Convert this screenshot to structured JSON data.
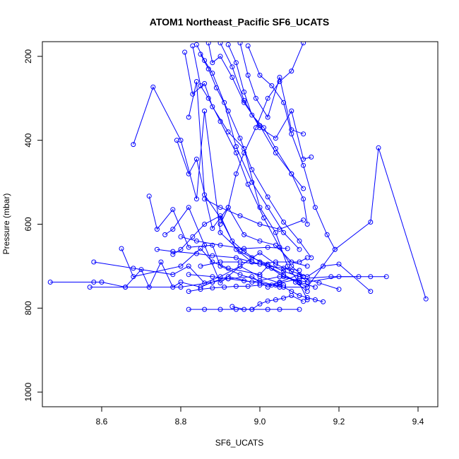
{
  "chart_data": {
    "type": "line",
    "title": "ATOM1 Northeast_Pacific SF6_UCATS",
    "xlabel": "SF6_UCATS",
    "ylabel": "Pressure (mbar)",
    "xlim": [
      8.45,
      9.45
    ],
    "ylim": [
      1035,
      165
    ],
    "x_ticks": [
      8.6,
      8.8,
      9.0,
      9.2,
      9.4
    ],
    "x_tick_labels": [
      "8.6",
      "8.8",
      "9.0",
      "9.2",
      "9.4"
    ],
    "y_ticks": [
      200,
      400,
      600,
      800,
      1000
    ],
    "y_tick_labels": [
      "200",
      "400",
      "600",
      "800",
      "1000"
    ],
    "grid": false,
    "legend": "none",
    "marker": "open-circle",
    "color": "#0000ff",
    "series": [
      {
        "x": [
          8.47,
          8.58,
          8.6,
          8.66,
          8.7,
          8.72,
          8.75,
          8.78,
          8.8,
          8.85,
          8.88,
          8.92,
          8.98,
          9.02,
          9.05,
          9.1,
          9.12
        ],
        "y": [
          738,
          738,
          738,
          750,
          708,
          750,
          690,
          750,
          738,
          750,
          738,
          730,
          725,
          750,
          738,
          720,
          738
        ]
      },
      {
        "x": [
          8.57,
          8.66,
          8.8,
          8.88,
          8.92,
          8.98,
          9.05,
          9.12,
          9.2,
          9.28,
          9.32
        ],
        "y": [
          750,
          750,
          750,
          738,
          725,
          738,
          725,
          738,
          725,
          725,
          725
        ]
      },
      {
        "x": [
          8.58,
          8.68,
          8.78,
          8.82,
          8.86,
          8.9,
          8.95,
          9.0,
          9.05,
          9.1,
          9.18,
          9.25
        ],
        "y": [
          690,
          705,
          720,
          700,
          740,
          725,
          700,
          725,
          740,
          730,
          725,
          725
        ]
      },
      {
        "x": [
          8.65,
          8.68,
          8.8,
          8.85,
          8.88,
          8.92,
          9.0,
          9.02,
          9.1,
          9.12
        ],
        "y": [
          658,
          725,
          700,
          658,
          690,
          705,
          720,
          700,
          740,
          750
        ]
      },
      {
        "x": [
          8.72,
          8.74,
          8.78,
          8.82,
          8.88,
          8.9,
          8.95,
          9.0,
          9.05,
          9.12,
          9.19,
          9.28,
          9.3,
          9.42
        ],
        "y": [
          533,
          612,
          565,
          655,
          650,
          700,
          720,
          735,
          750,
          750,
          660,
          595,
          418,
          778
        ]
      },
      {
        "x": [
          8.68,
          8.73,
          8.8,
          8.84,
          8.86,
          8.9,
          8.95,
          8.98,
          9.02,
          9.06,
          9.1,
          9.15,
          9.2
        ],
        "y": [
          410,
          273,
          400,
          540,
          330,
          620,
          665,
          680,
          695,
          712,
          725,
          740,
          755
        ]
      },
      {
        "x": [
          8.76,
          8.78,
          8.82,
          8.86,
          8.9,
          8.95,
          9.0,
          9.04,
          9.08,
          9.12,
          9.16,
          9.2,
          9.28
        ],
        "y": [
          625,
          612,
          560,
          650,
          740,
          700,
          668,
          695,
          712,
          725,
          700,
          695,
          760
        ]
      },
      {
        "x": [
          8.78,
          8.8,
          8.83,
          8.86,
          8.9,
          8.94,
          8.98,
          9.02,
          9.06,
          9.1,
          9.14
        ],
        "y": [
          672,
          660,
          630,
          600,
          580,
          660,
          690,
          700,
          725,
          738,
          750
        ]
      },
      {
        "x": [
          8.79,
          8.82,
          8.84,
          8.88,
          8.92,
          8.96,
          9.0,
          9.04,
          9.08,
          9.12
        ],
        "y": [
          400,
          480,
          445,
          610,
          560,
          625,
          640,
          650,
          690,
          700
        ]
      },
      {
        "x": [
          8.81,
          8.83,
          8.86,
          8.88,
          8.92,
          8.96,
          9.0,
          9.04,
          9.07,
          9.1,
          9.12
        ],
        "y": [
          190,
          290,
          265,
          320,
          380,
          420,
          560,
          620,
          700,
          740,
          780
        ]
      },
      {
        "x": [
          8.82,
          8.84,
          8.86,
          8.9,
          8.93,
          8.96,
          9.0,
          9.03,
          9.06,
          9.09,
          9.12
        ],
        "y": [
          345,
          260,
          530,
          585,
          640,
          665,
          690,
          705,
          720,
          738,
          760
        ]
      },
      {
        "x": [
          8.83,
          8.85,
          8.87,
          8.9,
          8.94,
          8.97,
          9.01,
          9.05,
          9.08,
          9.11
        ],
        "y": [
          175,
          270,
          300,
          355,
          430,
          505,
          585,
          655,
          700,
          725
        ]
      },
      {
        "x": [
          8.84,
          8.86,
          8.88,
          8.91,
          8.94,
          8.98,
          9.02,
          9.06,
          9.1
        ],
        "y": [
          172,
          210,
          240,
          310,
          415,
          500,
          560,
          620,
          660
        ]
      },
      {
        "x": [
          8.85,
          8.87,
          8.89,
          8.92,
          8.95,
          8.98,
          9.02,
          9.06,
          9.1,
          9.13
        ],
        "y": [
          195,
          230,
          275,
          330,
          395,
          470,
          535,
          595,
          640,
          680
        ]
      },
      {
        "x": [
          8.87,
          8.88,
          8.9,
          8.93,
          8.96,
          9.0,
          9.04,
          9.08,
          9.11,
          9.12
        ],
        "y": [
          168,
          215,
          200,
          250,
          310,
          365,
          430,
          480,
          540,
          600
        ]
      },
      {
        "x": [
          8.9,
          8.93,
          8.96,
          9.0,
          9.04,
          9.08,
          9.11,
          9.13
        ],
        "y": [
          168,
          225,
          305,
          370,
          395,
          330,
          445,
          440
        ]
      },
      {
        "x": [
          8.92,
          8.94,
          8.96,
          8.98,
          9.01,
          9.04,
          9.08,
          9.11
        ],
        "y": [
          172,
          215,
          285,
          340,
          370,
          420,
          480,
          515
        ]
      },
      {
        "x": [
          8.95,
          8.97,
          8.99,
          9.02,
          9.05,
          9.08,
          9.11
        ],
        "y": [
          168,
          245,
          300,
          345,
          250,
          375,
          385
        ]
      },
      {
        "x": [
          9.11,
          9.08,
          9.05,
          9.02,
          8.99,
          8.96,
          8.94,
          8.92,
          8.9
        ],
        "y": [
          168,
          235,
          260,
          300,
          370,
          430,
          480,
          560,
          600
        ]
      },
      {
        "x": [
          8.97,
          9.0,
          9.03,
          9.06,
          9.08,
          9.11,
          9.14,
          9.17,
          9.19
        ],
        "y": [
          175,
          245,
          270,
          310,
          385,
          460,
          560,
          625,
          660
        ]
      },
      {
        "x": [
          8.86,
          8.9,
          8.95,
          9.0,
          9.05,
          9.11
        ],
        "y": [
          540,
          560,
          580,
          600,
          612,
          590
        ]
      },
      {
        "x": [
          8.8,
          8.84,
          8.9,
          8.96,
          9.02,
          9.07
        ],
        "y": [
          630,
          640,
          650,
          658,
          655,
          658
        ]
      },
      {
        "x": [
          8.85,
          8.9,
          8.95,
          9.0,
          9.04,
          9.1,
          9.12
        ],
        "y": [
          700,
          690,
          690,
          695,
          690,
          690,
          680
        ]
      },
      {
        "x": [
          8.82,
          8.88,
          8.92,
          8.96,
          9.0,
          9.04,
          9.06,
          9.08,
          9.1,
          9.12,
          9.14,
          9.16
        ],
        "y": [
          720,
          725,
          730,
          735,
          740,
          745,
          750,
          760,
          770,
          775,
          780,
          785
        ]
      },
      {
        "x": [
          8.82,
          8.86,
          8.9,
          8.94,
          8.98,
          9.02,
          9.05,
          9.1
        ],
        "y": [
          803,
          803,
          803,
          803,
          803,
          803,
          803,
          803
        ]
      },
      {
        "x": [
          8.93,
          8.96,
          8.98,
          9.0,
          9.02,
          9.04,
          9.06,
          9.08,
          9.11
        ],
        "y": [
          796,
          803,
          803,
          790,
          783,
          780,
          776,
          770,
          784
        ]
      },
      {
        "x": [
          8.82,
          8.85,
          8.88,
          8.91,
          8.94,
          8.97,
          9.0,
          9.03,
          9.06
        ],
        "y": [
          760,
          755,
          752,
          750,
          748,
          748,
          745,
          745,
          745
        ]
      },
      {
        "x": [
          8.74,
          8.78,
          8.84,
          8.88,
          8.94,
          8.98,
          9.02,
          9.06,
          9.1
        ],
        "y": [
          660,
          665,
          670,
          675,
          680,
          690,
          700,
          705,
          710
        ]
      }
    ]
  }
}
